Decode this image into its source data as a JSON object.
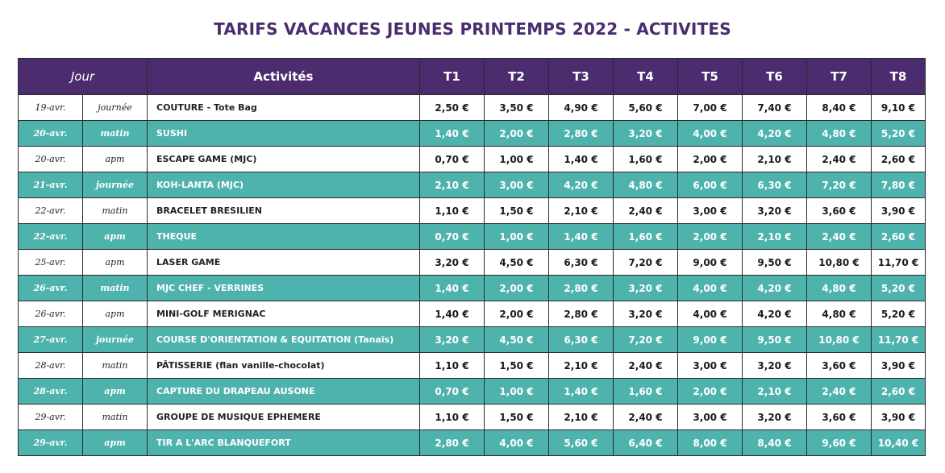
{
  "title": "TARIFS VACANCES JEUNES PRINTEMPS 2022 - ACTIVITES",
  "colors": {
    "header_bg": "#4b2c6e",
    "highlight_row": "#4fb3ad",
    "title": "#4b2c6e"
  },
  "header": {
    "jour": "Jour",
    "activites": "Activités",
    "tarifs": [
      "T1",
      "T2",
      "T3",
      "T4",
      "T5",
      "T6",
      "T7",
      "T8"
    ]
  },
  "rows": [
    {
      "date": "19-avr.",
      "moment": "journée",
      "activite": "COUTURE - Tote Bag",
      "prix": [
        "2,50 €",
        "3,50 €",
        "4,90 €",
        "5,60 €",
        "7,00 €",
        "7,40 €",
        "8,40 €",
        "9,10 €"
      ]
    },
    {
      "date": "20-avr.",
      "moment": "matin",
      "activite": "SUSHI",
      "prix": [
        "1,40 €",
        "2,00 €",
        "2,80 €",
        "3,20 €",
        "4,00 €",
        "4,20 €",
        "4,80 €",
        "5,20 €"
      ]
    },
    {
      "date": "20-avr.",
      "moment": "apm",
      "activite": "ESCAPE GAME (MJC)",
      "prix": [
        "0,70 €",
        "1,00 €",
        "1,40 €",
        "1,60 €",
        "2,00 €",
        "2,10 €",
        "2,40 €",
        "2,60 €"
      ]
    },
    {
      "date": "21-avr.",
      "moment": "journée",
      "activite": "KOH-LANTA (MJC)",
      "prix": [
        "2,10 €",
        "3,00 €",
        "4,20 €",
        "4,80 €",
        "6,00 €",
        "6,30 €",
        "7,20 €",
        "7,80 €"
      ]
    },
    {
      "date": "22-avr.",
      "moment": "matin",
      "activite": "BRACELET BRESILIEN",
      "prix": [
        "1,10 €",
        "1,50 €",
        "2,10 €",
        "2,40 €",
        "3,00 €",
        "3,20 €",
        "3,60 €",
        "3,90 €"
      ]
    },
    {
      "date": "22-avr.",
      "moment": "apm",
      "activite": "THEQUE",
      "prix": [
        "0,70 €",
        "1,00 €",
        "1,40 €",
        "1,60 €",
        "2,00 €",
        "2,10 €",
        "2,40 €",
        "2,60 €"
      ]
    },
    {
      "date": "25-avr.",
      "moment": "apm",
      "activite": "LASER GAME",
      "prix": [
        "3,20 €",
        "4,50 €",
        "6,30 €",
        "7,20 €",
        "9,00 €",
        "9,50 €",
        "10,80 €",
        "11,70 €"
      ]
    },
    {
      "date": "26-avr.",
      "moment": "matin",
      "activite": "MJC CHEF - VERRINES",
      "prix": [
        "1,40 €",
        "2,00 €",
        "2,80 €",
        "3,20 €",
        "4,00 €",
        "4,20 €",
        "4,80 €",
        "5,20 €"
      ]
    },
    {
      "date": "26-avr.",
      "moment": "apm",
      "activite": "MINI-GOLF MERIGNAC",
      "prix": [
        "1,40 €",
        "2,00 €",
        "2,80 €",
        "3,20 €",
        "4,00 €",
        "4,20 €",
        "4,80 €",
        "5,20 €"
      ]
    },
    {
      "date": "27-avr.",
      "moment": "journée",
      "activite": "COURSE D'ORIENTATION & EQUITATION (Tanaïs)",
      "prix": [
        "3,20 €",
        "4,50 €",
        "6,30 €",
        "7,20 €",
        "9,00 €",
        "9,50 €",
        "10,80 €",
        "11,70 €"
      ]
    },
    {
      "date": "28-avr.",
      "moment": "matin",
      "activite": "PÂTISSERIE (flan vanille-chocolat)",
      "prix": [
        "1,10 €",
        "1,50 €",
        "2,10 €",
        "2,40 €",
        "3,00 €",
        "3,20 €",
        "3,60 €",
        "3,90 €"
      ]
    },
    {
      "date": "28-avr.",
      "moment": "apm",
      "activite": "CAPTURE DU DRAPEAU AUSONE",
      "prix": [
        "0,70 €",
        "1,00 €",
        "1,40 €",
        "1,60 €",
        "2,00 €",
        "2,10 €",
        "2,40 €",
        "2,60 €"
      ]
    },
    {
      "date": "29-avr.",
      "moment": "matin",
      "activite": "GROUPE DE MUSIQUE EPHEMERE",
      "prix": [
        "1,10 €",
        "1,50 €",
        "2,10 €",
        "2,40 €",
        "3,00 €",
        "3,20 €",
        "3,60 €",
        "3,90 €"
      ]
    },
    {
      "date": "29-avr.",
      "moment": "apm",
      "activite": "TIR A L'ARC BLANQUEFORT",
      "prix": [
        "2,80 €",
        "4,00 €",
        "5,60 €",
        "6,40 €",
        "8,00 €",
        "8,40 €",
        "9,60 €",
        "10,40 €"
      ]
    }
  ]
}
